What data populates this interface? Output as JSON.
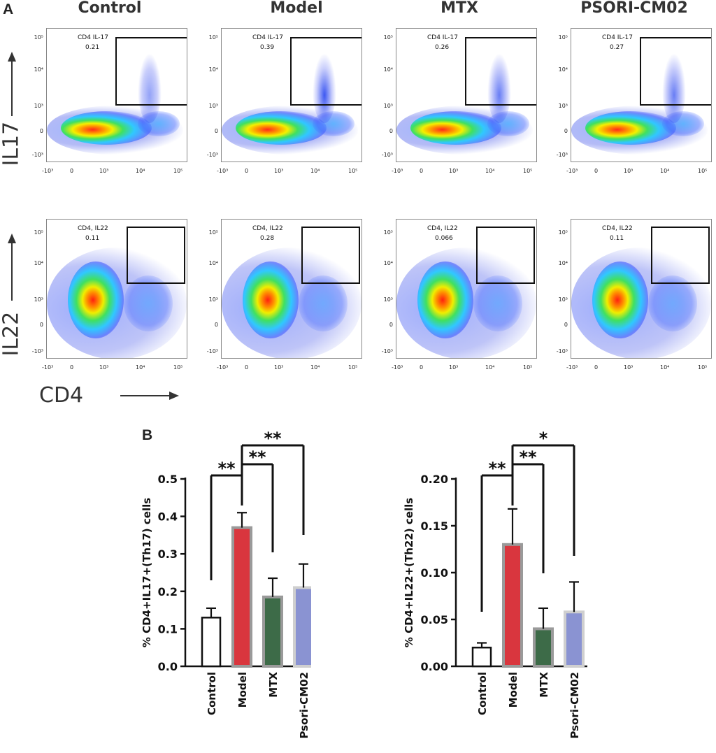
{
  "panel_a": {
    "letter": "A",
    "columns": [
      "Control",
      "Model",
      "MTX",
      "PSORI-CM02"
    ],
    "row_labels": {
      "il17": "IL17",
      "il22": "IL22"
    },
    "x_axis_label": "CD4",
    "axis_tick_labels": [
      "-10³",
      "0",
      "10³",
      "10⁴",
      "10⁵"
    ],
    "il17_gates": [
      {
        "name": "CD4 IL-17",
        "value": "0.21"
      },
      {
        "name": "CD4 IL-17",
        "value": "0.39"
      },
      {
        "name": "CD4 IL-17",
        "value": "0.26"
      },
      {
        "name": "CD4 IL-17",
        "value": "0.27"
      }
    ],
    "il22_gates": [
      {
        "name": "CD4, IL22",
        "value": "0.11"
      },
      {
        "name": "CD4, IL22",
        "value": "0.28"
      },
      {
        "name": "CD4, IL22",
        "value": "0.066"
      },
      {
        "name": "CD4, IL22",
        "value": "0.11"
      }
    ]
  },
  "panel_b": {
    "letter": "B"
  },
  "colors": {
    "control": "#ffffff",
    "model": "#d9363e",
    "mtx": "#3d6b48",
    "psori": "#8a93d2"
  },
  "chart_data": [
    {
      "type": "bar",
      "title": "",
      "ylabel": "% CD4+IL17+(Th17) cells",
      "xlabel": "",
      "categories": [
        "Control",
        "Model",
        "MTX",
        "Psori-CM02"
      ],
      "values": [
        0.13,
        0.37,
        0.185,
        0.21
      ],
      "errors": [
        0.025,
        0.04,
        0.05,
        0.063
      ],
      "ylim": [
        0,
        0.5
      ],
      "yticks": [
        "0.0",
        "0.1",
        "0.2",
        "0.3",
        "0.4",
        "0.5"
      ],
      "significance": [
        {
          "from": 0,
          "to": 1,
          "label": "**"
        },
        {
          "from": 1,
          "to": 2,
          "label": "**"
        },
        {
          "from": 1,
          "to": 3,
          "label": "**"
        }
      ]
    },
    {
      "type": "bar",
      "title": "",
      "ylabel": "% CD4+IL22+(Th22) cells",
      "xlabel": "",
      "categories": [
        "Control",
        "Model",
        "MTX",
        "Psori-CM02"
      ],
      "values": [
        0.02,
        0.13,
        0.04,
        0.058
      ],
      "errors": [
        0.005,
        0.038,
        0.022,
        0.032
      ],
      "ylim": [
        0,
        0.2
      ],
      "yticks": [
        "0.00",
        "0.05",
        "0.10",
        "0.15",
        "0.20"
      ],
      "significance": [
        {
          "from": 0,
          "to": 1,
          "label": "**"
        },
        {
          "from": 1,
          "to": 2,
          "label": "**"
        },
        {
          "from": 1,
          "to": 3,
          "label": "*"
        }
      ]
    }
  ]
}
